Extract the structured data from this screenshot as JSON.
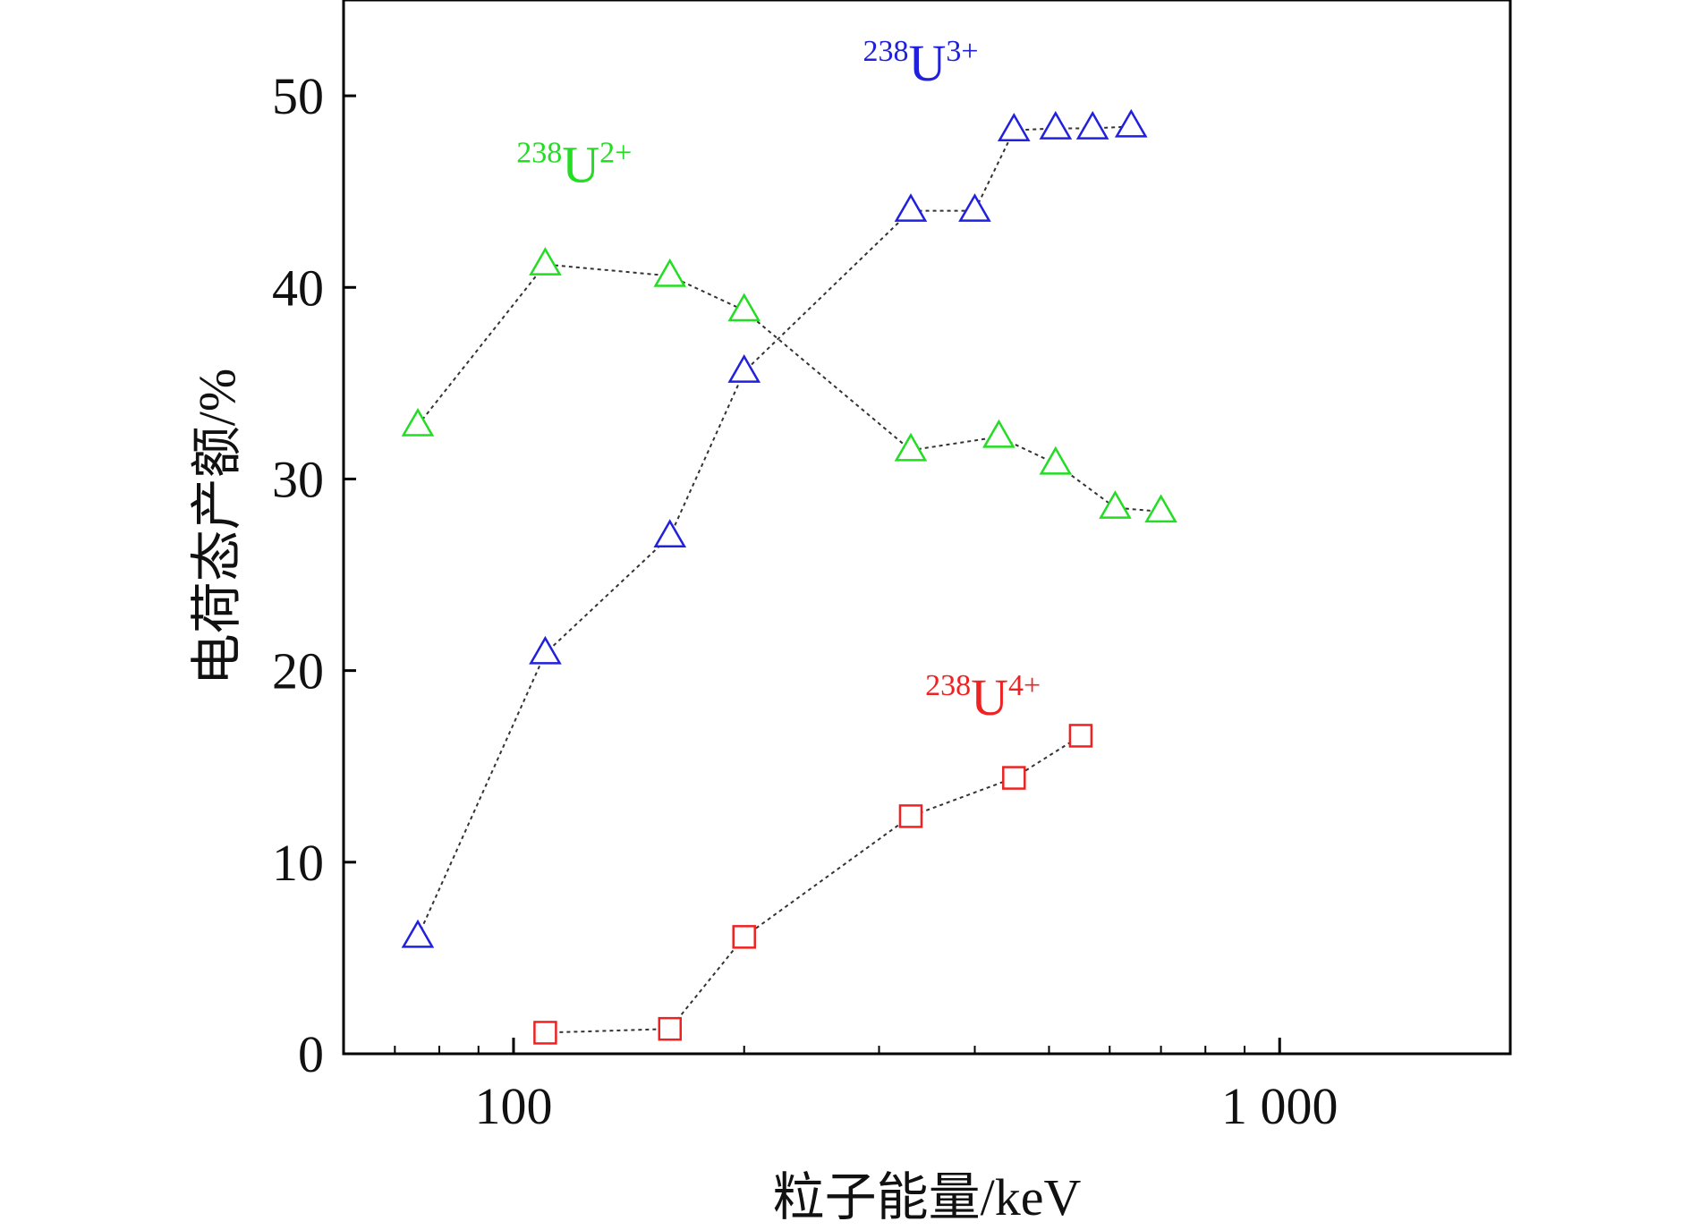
{
  "chart_data": {
    "type": "scatter",
    "xscale": "log",
    "xlim": [
      60,
      2000
    ],
    "ylim": [
      0,
      55
    ],
    "grid": false,
    "legend": "none",
    "xlabel": "粒子能量/keV",
    "ylabel": "电荷态产额/%",
    "xtick_labels": [
      {
        "value": 100,
        "label": "100"
      },
      {
        "value": 1000,
        "label": "1 000"
      }
    ],
    "xminor_ticks": [
      70,
      80,
      90,
      200,
      300,
      400,
      500,
      600,
      700,
      800,
      900
    ],
    "yticks": [
      {
        "value": 0,
        "label": "0"
      },
      {
        "value": 10,
        "label": "10"
      },
      {
        "value": 20,
        "label": "20"
      },
      {
        "value": 30,
        "label": "30"
      },
      {
        "value": 40,
        "label": "40"
      },
      {
        "value": 50,
        "label": "50"
      }
    ],
    "series": [
      {
        "name_parts": {
          "mass": "238",
          "element": "U",
          "charge": "2+"
        },
        "marker": "triangle",
        "color": "#22dd22",
        "label_anchor": [
          120,
          45.5
        ],
        "points": [
          [
            75,
            32.8
          ],
          [
            110,
            41.2
          ],
          [
            160,
            40.6
          ],
          [
            200,
            38.8
          ],
          [
            330,
            31.5
          ],
          [
            430,
            32.2
          ],
          [
            510,
            30.8
          ],
          [
            610,
            28.5
          ],
          [
            700,
            28.3
          ]
        ]
      },
      {
        "name_parts": {
          "mass": "238",
          "element": "U",
          "charge": "3+"
        },
        "marker": "triangle",
        "color": "#2020dd",
        "label_anchor": [
          340,
          50.8
        ],
        "points": [
          [
            75,
            6.1
          ],
          [
            110,
            20.9
          ],
          [
            160,
            27.0
          ],
          [
            200,
            35.6
          ],
          [
            330,
            44.0
          ],
          [
            400,
            44.0
          ],
          [
            450,
            48.2
          ],
          [
            510,
            48.3
          ],
          [
            570,
            48.3
          ],
          [
            640,
            48.4
          ]
        ]
      },
      {
        "name_parts": {
          "mass": "238",
          "element": "U",
          "charge": "4+"
        },
        "marker": "square",
        "color": "#ee2222",
        "label_anchor": [
          410,
          17.7
        ],
        "points": [
          [
            110,
            1.1
          ],
          [
            160,
            1.3
          ],
          [
            200,
            6.1
          ],
          [
            330,
            12.4
          ],
          [
            450,
            14.4
          ],
          [
            550,
            16.6
          ]
        ]
      }
    ]
  }
}
